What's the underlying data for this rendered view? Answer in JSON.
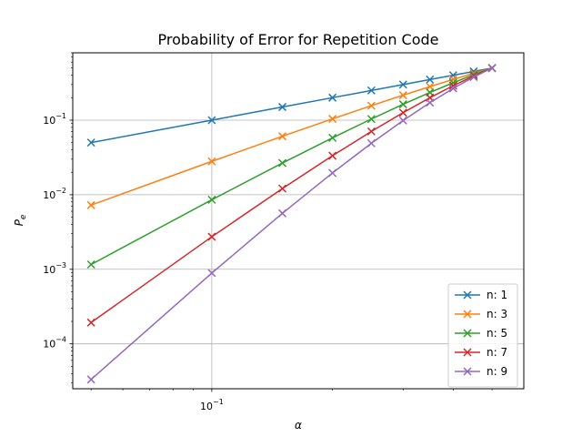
{
  "chart_data": {
    "type": "line",
    "scale": {
      "x": "log",
      "y": "log"
    },
    "title": "Probability of Error for Repetition Code",
    "xlabel": "α",
    "ylabel": "P",
    "ylabel_sub": "e",
    "xlim": [
      0.045,
      0.6
    ],
    "ylim": [
      2.5e-05,
      0.8
    ],
    "grid": true,
    "legend_position": "lower right",
    "marker": "x",
    "x_ticks": [
      {
        "value": 0.1,
        "base": "10",
        "exp": "−1"
      }
    ],
    "y_ticks": [
      {
        "value": 0.0001,
        "base": "10",
        "exp": "−4"
      },
      {
        "value": 0.001,
        "base": "10",
        "exp": "−3"
      },
      {
        "value": 0.01,
        "base": "10",
        "exp": "−2"
      },
      {
        "value": 0.1,
        "base": "10",
        "exp": "−1"
      }
    ],
    "x": [
      0.05,
      0.1,
      0.15,
      0.2,
      0.25,
      0.3,
      0.35,
      0.4,
      0.45,
      0.5
    ],
    "series": [
      {
        "name": "n: 1",
        "color": "#1f77b4",
        "values": [
          0.05,
          0.1,
          0.15,
          0.2,
          0.25,
          0.3,
          0.35,
          0.4,
          0.45,
          0.5
        ]
      },
      {
        "name": "n: 3",
        "color": "#ff7f0e",
        "values": [
          0.00725,
          0.028,
          0.06075,
          0.104,
          0.15625,
          0.216,
          0.28175,
          0.352,
          0.42525,
          0.5
        ]
      },
      {
        "name": "n: 5",
        "color": "#2ca02c",
        "values": [
          0.00116,
          0.00856,
          0.02661,
          0.05792,
          0.10352,
          0.16308,
          0.23517,
          0.31744,
          0.40687,
          0.5
        ]
      },
      {
        "name": "n: 7",
        "color": "#d62728",
        "values": [
          0.000193,
          0.00273,
          0.0121,
          0.03334,
          0.07056,
          0.12604,
          0.19985,
          0.28979,
          0.39171,
          0.5
        ]
      },
      {
        "name": "n: 9",
        "color": "#9467bd",
        "values": [
          3.33e-05,
          0.000891,
          0.00563,
          0.01958,
          0.04893,
          0.09881,
          0.17172,
          0.26657,
          0.37859,
          0.5
        ]
      }
    ]
  }
}
